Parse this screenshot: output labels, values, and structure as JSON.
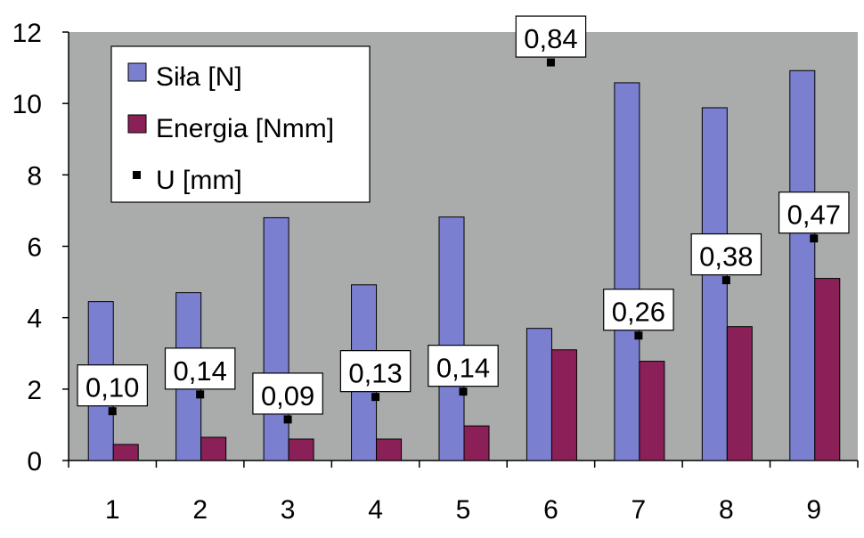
{
  "chart_data": {
    "type": "bar",
    "title": "",
    "xlabel": "",
    "ylabel": "",
    "categories": [
      "1",
      "2",
      "3",
      "4",
      "5",
      "6",
      "7",
      "8",
      "9"
    ],
    "ylim": [
      0,
      12
    ],
    "yticks": [
      "0",
      "2",
      "4",
      "6",
      "8",
      "10",
      "12"
    ],
    "grid": false,
    "legend_position": "top-left",
    "series": [
      {
        "name": "Siła [N]",
        "kind": "bar",
        "color": "#7b7fcf",
        "values": [
          4.45,
          4.7,
          6.8,
          4.92,
          6.82,
          3.7,
          10.58,
          9.88,
          10.92
        ]
      },
      {
        "name": "Energia [Nmm]",
        "kind": "bar",
        "color": "#8b2058",
        "values": [
          0.45,
          0.65,
          0.6,
          0.6,
          0.97,
          3.1,
          2.78,
          3.75,
          5.1
        ]
      },
      {
        "name": "U [mm]",
        "kind": "marker",
        "color": "#000000",
        "values": [
          1.38,
          1.85,
          1.15,
          1.78,
          1.93,
          11.15,
          3.5,
          5.05,
          6.22
        ],
        "labels": [
          "0,10",
          "0,14",
          "0,09",
          "0,13",
          "0,14",
          "0,84",
          "0,26",
          "0,38",
          "0,47"
        ]
      }
    ],
    "plot_background": "#a9acab"
  }
}
